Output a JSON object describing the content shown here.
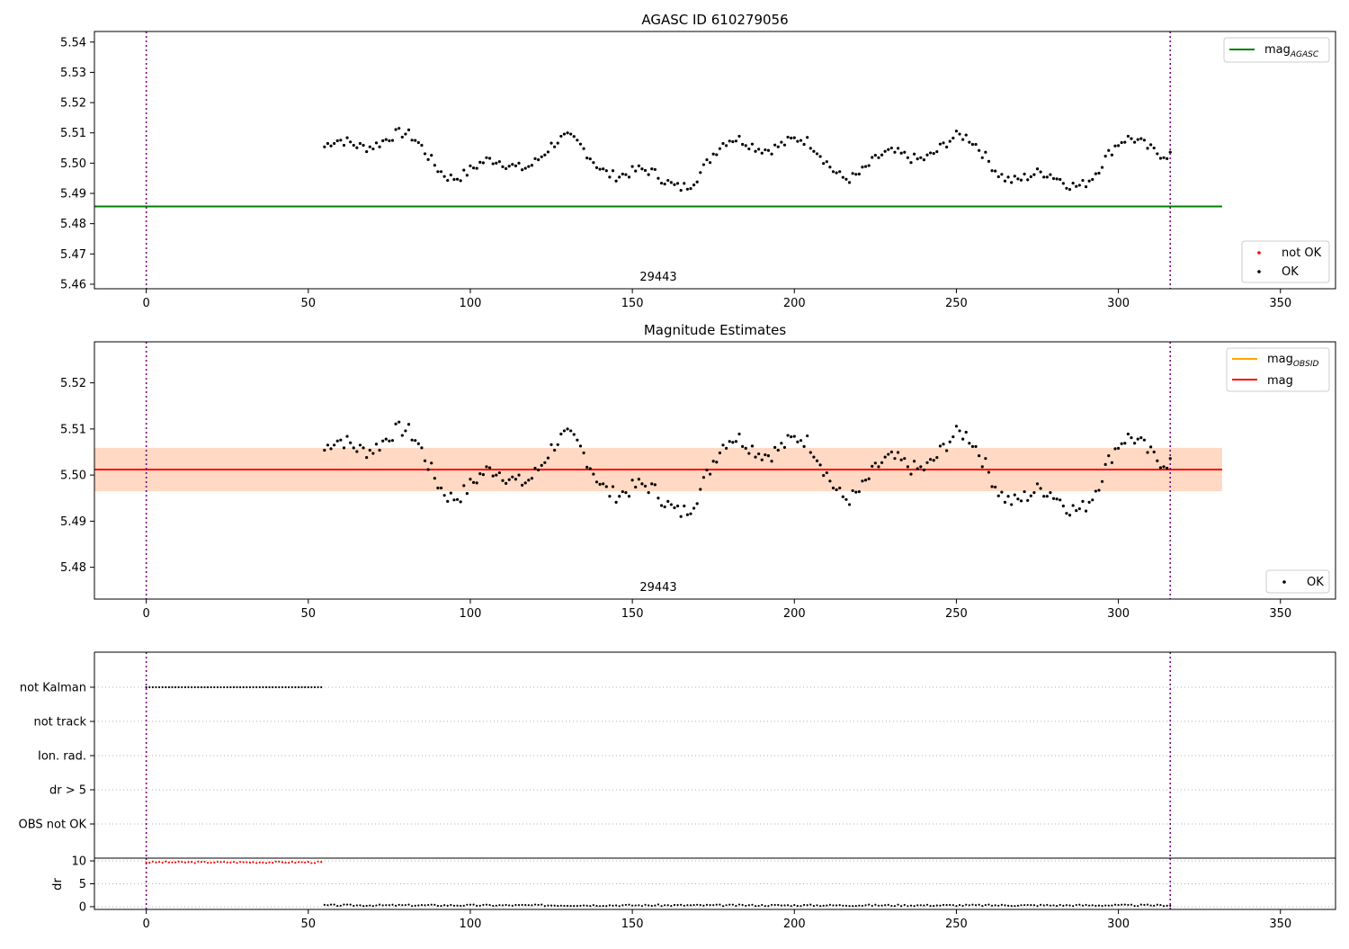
{
  "chart_data": [
    {
      "type": "scatter",
      "title": "AGASC ID 610279056",
      "xlabel": "",
      "ylabel": "",
      "xlim": [
        -16,
        367
      ],
      "ylim": [
        5.4585,
        5.5435
      ],
      "xticks": [
        0,
        50,
        100,
        150,
        200,
        250,
        300,
        350
      ],
      "yticks": [
        5.46,
        5.47,
        5.48,
        5.49,
        5.5,
        5.51,
        5.52,
        5.53,
        5.54
      ],
      "grid": false,
      "annotation": "29443",
      "legends": [
        {
          "placement": "upper-right",
          "entries": [
            {
              "label": "mag",
              "subscript": "AGASC",
              "color": "#008000",
              "kind": "line"
            }
          ]
        },
        {
          "placement": "lower-right",
          "entries": [
            {
              "label": "not OK",
              "color": "#ff0000",
              "kind": "point"
            },
            {
              "label": "OK",
              "color": "#000000",
              "kind": "point"
            }
          ]
        }
      ],
      "vlines": [
        0,
        316
      ],
      "hlines": [
        {
          "name": "mag_AGASC",
          "y": 5.4857,
          "x_range": [
            -16,
            332
          ],
          "color": "#008000"
        }
      ]
    },
    {
      "type": "scatter",
      "title": "Magnitude Estimates",
      "xlabel": "",
      "ylabel": "",
      "xlim": [
        -16,
        367
      ],
      "ylim": [
        5.4731,
        5.5289
      ],
      "xticks": [
        0,
        50,
        100,
        150,
        200,
        250,
        300,
        350
      ],
      "yticks": [
        5.48,
        5.49,
        5.5,
        5.51,
        5.52
      ],
      "grid": false,
      "annotation": "29443",
      "legends": [
        {
          "placement": "upper-right",
          "entries": [
            {
              "label": "mag",
              "subscript": "OBSID",
              "color": "#ffa500",
              "kind": "line"
            },
            {
              "label": "mag",
              "subscript": "",
              "color": "#ff0000",
              "kind": "line"
            }
          ]
        },
        {
          "placement": "lower-right",
          "entries": [
            {
              "label": "OK",
              "color": "#000000",
              "kind": "point"
            }
          ]
        }
      ],
      "vlines": [
        0,
        316
      ],
      "hlines": [
        {
          "name": "mag",
          "y": 5.5012,
          "x_range": [
            -16,
            332
          ],
          "color": "#ff0000"
        }
      ],
      "bands": [
        {
          "y": [
            5.4965,
            5.5059
          ],
          "x": [
            -16,
            332
          ],
          "color": "#ffb6c1",
          "opacity": 0.4
        },
        {
          "y": [
            5.4965,
            5.5059
          ],
          "x": [
            -16,
            332
          ],
          "color": "#ffa500",
          "opacity": 0.15
        }
      ]
    },
    {
      "type": "scatter",
      "title": "",
      "xlim": [
        -16,
        367
      ],
      "categories": [
        "not Kalman",
        "not track",
        "Ion. rad.",
        "dr > 5",
        "OBS not OK"
      ],
      "flag_points": [
        {
          "category": "not Kalman",
          "x_range": [
            0,
            54
          ],
          "color": "#000000"
        }
      ],
      "vlines": [
        0,
        316
      ],
      "grid": "y-dotted"
    },
    {
      "type": "scatter",
      "title": "",
      "xlabel": "",
      "ylabel": "dr",
      "xlim": [
        -16,
        367
      ],
      "ylim": [
        -0.6,
        10.6
      ],
      "xticks": [
        0,
        50,
        100,
        150,
        200,
        250,
        300,
        350
      ],
      "yticks": [
        0,
        5,
        10
      ],
      "grid": "y-dotted",
      "vlines": [
        0,
        316
      ],
      "dr_segments": [
        {
          "x_range": [
            0,
            54
          ],
          "value": 9.7,
          "color": "#ff0000"
        },
        {
          "x_range": [
            55,
            316
          ],
          "value": 0.3,
          "color": "#000000"
        }
      ]
    }
  ]
}
